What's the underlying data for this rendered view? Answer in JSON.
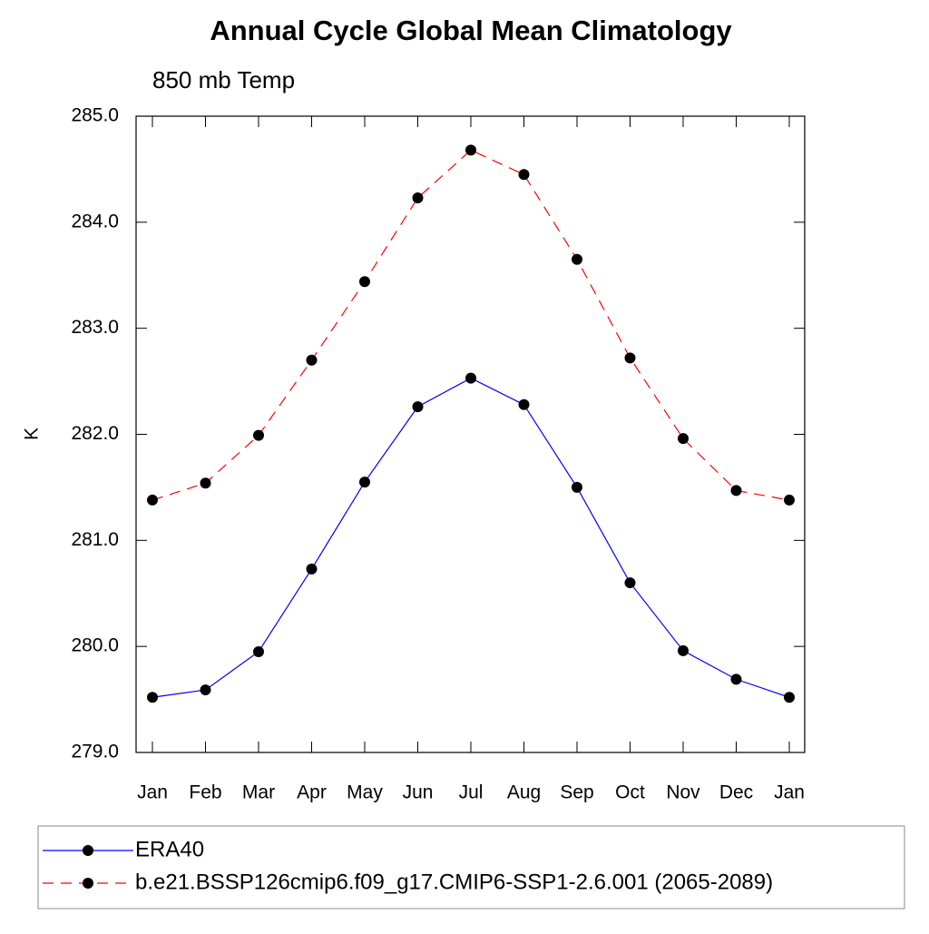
{
  "chart_data": {
    "type": "line",
    "title": "Annual Cycle Global Mean Climatology",
    "subtitle": "850 mb Temp",
    "y_label": "K",
    "categories": [
      "Jan",
      "Feb",
      "Mar",
      "Apr",
      "May",
      "Jun",
      "Jul",
      "Aug",
      "Sep",
      "Oct",
      "Nov",
      "Dec",
      "Jan"
    ],
    "series": [
      {
        "name": "ERA40",
        "color": "#0000ff",
        "dash": "solid",
        "values": [
          279.52,
          279.59,
          279.95,
          280.73,
          281.55,
          282.26,
          282.53,
          282.28,
          281.5,
          280.6,
          279.96,
          279.69,
          279.52
        ]
      },
      {
        "name": "b.e21.BSSP126cmip6.f09_g17.CMIP6-SSP1-2.6.001 (2065-2089)",
        "color": "#ff0000",
        "dash": "dashed",
        "values": [
          281.38,
          281.54,
          281.99,
          282.7,
          283.44,
          284.23,
          284.68,
          284.45,
          283.65,
          282.72,
          281.96,
          281.47,
          281.38
        ]
      }
    ],
    "ylim": [
      279,
      285
    ],
    "yticks": [
      {
        "value": 279,
        "label": "279.0"
      },
      {
        "value": 280,
        "label": "280.0"
      },
      {
        "value": 281,
        "label": "281.0"
      },
      {
        "value": 282,
        "label": "282.0"
      },
      {
        "value": 283,
        "label": "283.0"
      },
      {
        "value": 284,
        "label": "284.0"
      },
      {
        "value": 285,
        "label": "285.0"
      }
    ],
    "marker_color": "#000000",
    "legend": "bottom"
  }
}
